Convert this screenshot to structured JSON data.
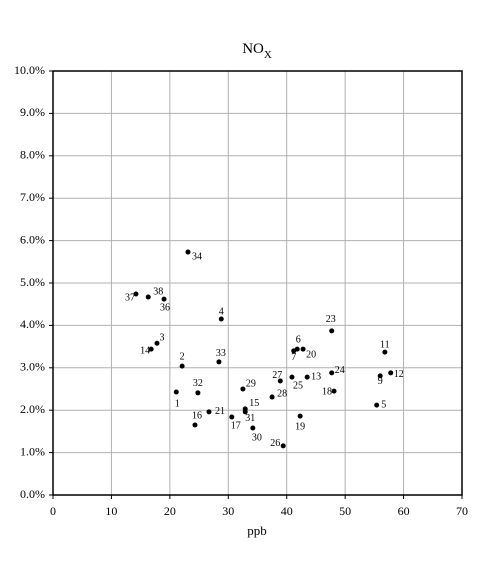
{
  "chart_data": {
    "type": "scatter",
    "title": "NO",
    "title_subscript": "X",
    "x_label": "ppb",
    "xlim": [
      0,
      70
    ],
    "xticks": [
      0,
      10,
      20,
      30,
      40,
      50,
      60,
      70
    ],
    "ylim": [
      0,
      10
    ],
    "yticks": [
      {
        "value": 0,
        "label": "0.0%"
      },
      {
        "value": 1,
        "label": "1.0%"
      },
      {
        "value": 2,
        "label": "2.0%"
      },
      {
        "value": 3,
        "label": "3.0%"
      },
      {
        "value": 4,
        "label": "4.0%"
      },
      {
        "value": 5,
        "label": "5.0%"
      },
      {
        "value": 6,
        "label": "6.0%"
      },
      {
        "value": 7,
        "label": "7.0%"
      },
      {
        "value": 8,
        "label": "8.0%"
      },
      {
        "value": 9,
        "label": "9.0%"
      },
      {
        "value": 10,
        "label": "10.0%"
      }
    ],
    "grid": true,
    "color": "#000000",
    "point_labels": [
      "1",
      "2",
      "3",
      "14",
      "4",
      "33",
      "32",
      "16",
      "21",
      "34",
      "37",
      "38",
      "36",
      "29",
      "15",
      "31",
      "17",
      "30",
      "28",
      "27",
      "25",
      "26",
      "7",
      "6",
      "20",
      "13",
      "19",
      "23",
      "24",
      "18",
      "5",
      "9",
      "11",
      "12"
    ],
    "x": [
      21.1,
      22.1,
      17.8,
      16.8,
      28.8,
      28.4,
      24.8,
      24.3,
      26.7,
      23.1,
      14.2,
      16.3,
      19.0,
      32.5,
      32.9,
      32.9,
      30.6,
      34.2,
      37.5,
      38.9,
      40.9,
      39.4,
      41.2,
      41.8,
      42.8,
      43.5,
      42.3,
      47.7,
      47.7,
      48.1,
      55.4,
      56.0,
      56.8,
      57.8
    ],
    "y": [
      2.43,
      3.04,
      3.58,
      3.44,
      4.15,
      3.14,
      2.41,
      1.65,
      1.96,
      5.73,
      4.74,
      4.67,
      4.62,
      2.5,
      2.03,
      1.96,
      1.84,
      1.58,
      2.31,
      2.69,
      2.78,
      1.16,
      3.4,
      3.44,
      3.44,
      2.78,
      1.86,
      3.87,
      2.88,
      2.45,
      2.12,
      2.81,
      3.37,
      2.88
    ]
  }
}
